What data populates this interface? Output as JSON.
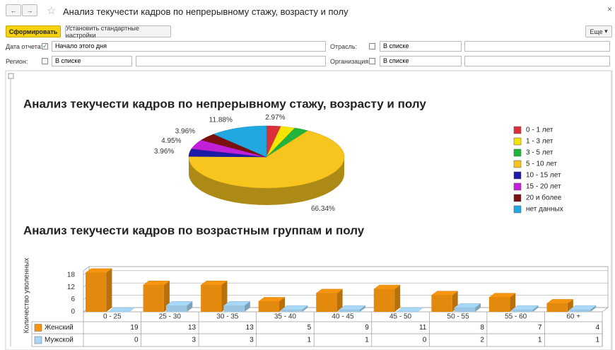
{
  "toolbar": {
    "title": "Анализ текучести кадров по непрерывному стажу, возрасту и полу",
    "generate": "Сформировать",
    "defaults": "Установить стандартные настройки",
    "more": "Еще"
  },
  "filters": [
    {
      "label": "Дата отчета:",
      "checked": true,
      "value": "Начало этого дня"
    },
    {
      "label": "Отрасль:",
      "checked": false,
      "value": "В списке"
    },
    {
      "label": "Регион:",
      "checked": false,
      "value": "В списке"
    },
    {
      "label": "Организация:",
      "checked": false,
      "value": "В списке"
    }
  ],
  "chart_data": [
    {
      "type": "pie3d",
      "title": "Анализ текучести кадров по непрерывному стажу, возрасту и полу",
      "categories": [
        "0 - 1 лет",
        "1 - 3 лет",
        "3 - 5 лет",
        "5 - 10 лет",
        "10 - 15 лет",
        "15 - 20 лет",
        "20 и более",
        "нет данных"
      ],
      "values": [
        2.97,
        2.97,
        2.97,
        66.34,
        3.96,
        4.95,
        3.96,
        11.88
      ],
      "value_labels": [
        "2.97%",
        null,
        null,
        "66.34%",
        "3.96%",
        "4.95%",
        "3.96%",
        "11.88%"
      ],
      "colors": [
        "#d9303a",
        "#f5e400",
        "#22b33c",
        "#f7c51e",
        "#1b1ba8",
        "#c020d8",
        "#7a1010",
        "#22a8e0"
      ],
      "legend": "right"
    },
    {
      "type": "bar3d",
      "title": "Анализ текучести кадров по возрастным группам и полу",
      "y_label": "Количество уволенных",
      "categories": [
        "0 - 25",
        "25 - 30",
        "30 - 35",
        "35 - 40",
        "40 - 45",
        "45 - 50",
        "50 - 55",
        "55 - 60",
        "60 +"
      ],
      "series": [
        {
          "name": "Женский",
          "color": "#f7950f",
          "values": [
            19,
            13,
            13,
            5,
            9,
            11,
            8,
            7,
            4
          ]
        },
        {
          "name": "Мужской",
          "color": "#a8d8f8",
          "values": [
            0,
            3,
            3,
            1,
            1,
            0,
            2,
            1,
            1
          ]
        }
      ],
      "ylim": [
        0,
        20
      ],
      "yticks": [
        0,
        6,
        12,
        18
      ],
      "grid": true,
      "data_table": true
    }
  ]
}
